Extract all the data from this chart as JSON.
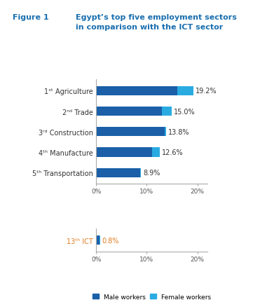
{
  "title_figure": "Figure 1",
  "title_main": "Egypt’s top five employment sectors\nin comparison with the ICT sector",
  "title_color": "#1a6faf",
  "categories_top": [
    "1ˢᵗ Agriculture",
    "2ⁿᵈ Trade",
    "3ʳᵈ Construction",
    "4ᵗʰ Manufacture",
    "5ᵗʰ Transportation"
  ],
  "male_top": [
    16.0,
    13.0,
    13.6,
    11.0,
    8.7
  ],
  "female_top": [
    3.2,
    2.0,
    0.2,
    1.6,
    0.2
  ],
  "labels_top": [
    "19.2%",
    "15.0%",
    "13.8%",
    "12.6%",
    "8.9%"
  ],
  "categories_bottom": [
    "13ᵗʰ ICT"
  ],
  "male_bottom": [
    0.7
  ],
  "female_bottom": [
    0.1
  ],
  "labels_bottom": [
    "0.8%"
  ],
  "male_color": "#1a5fa8",
  "female_color": "#29abe2",
  "ict_label_color": "#e07b20",
  "xlim": [
    0,
    22
  ],
  "xticks": [
    0,
    10,
    20
  ],
  "xticklabels": [
    "0%",
    "10%",
    "20%"
  ],
  "bg_color": "#ffffff",
  "label_fontsize": 7.0,
  "tick_fontsize": 6.5,
  "bar_height": 0.45,
  "legend_male": "Male workers",
  "legend_female": "Female workers"
}
